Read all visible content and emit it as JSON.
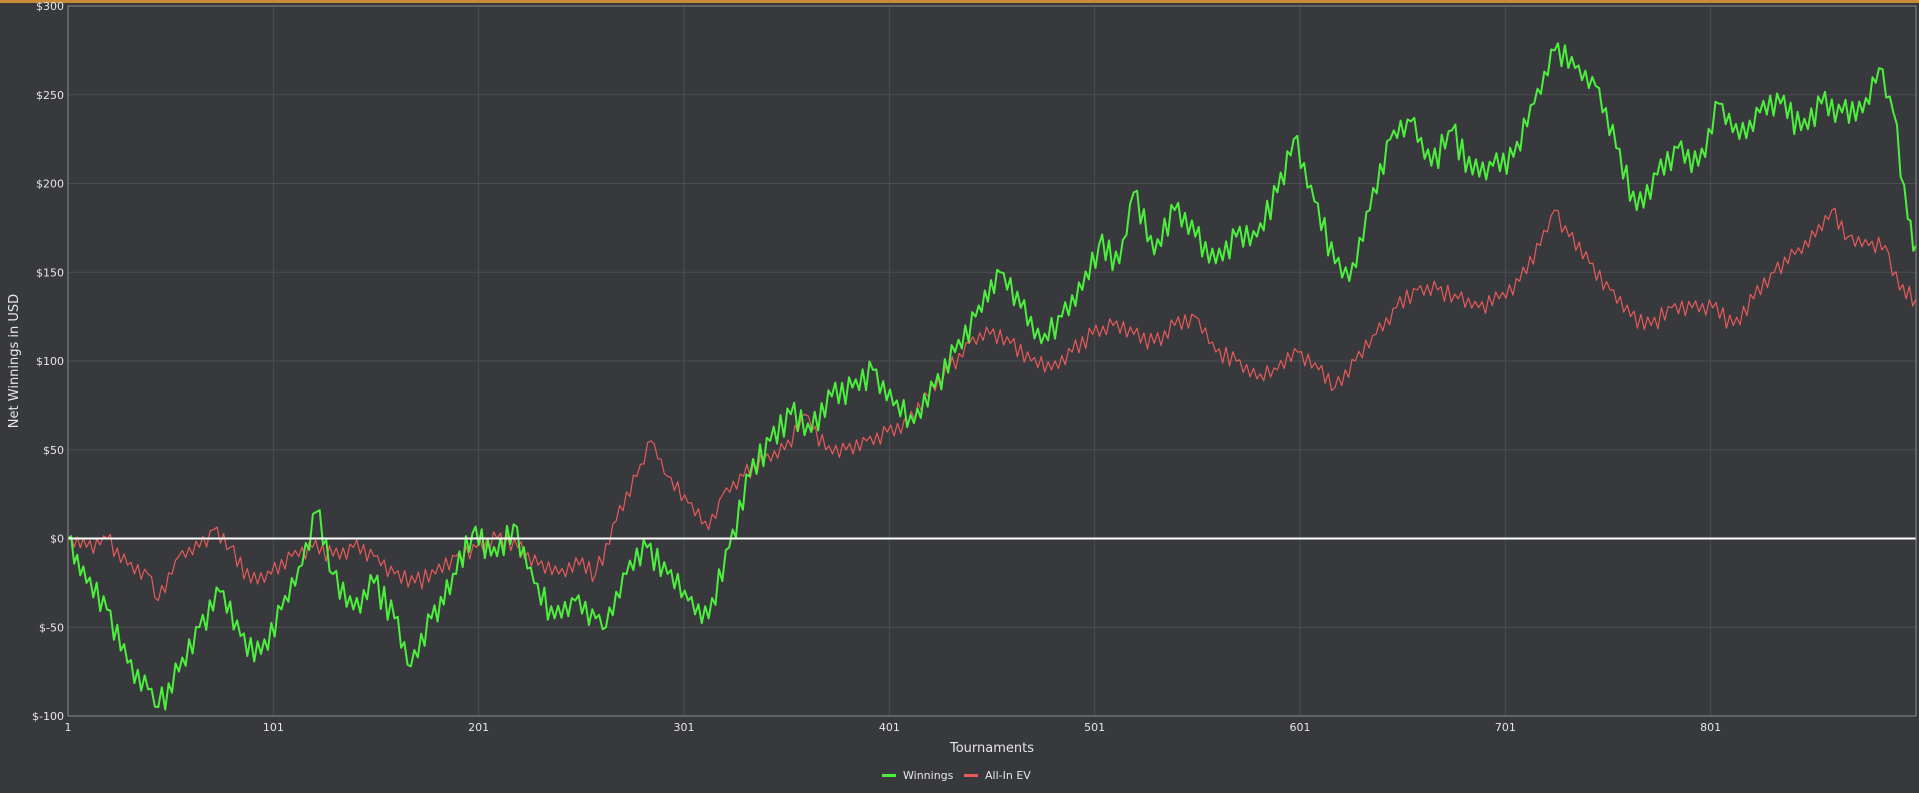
{
  "chart_data": {
    "type": "line",
    "title": "",
    "xlabel": "Tournaments",
    "ylabel": "Net Winnings in USD",
    "xlim": [
      1,
      901
    ],
    "ylim": [
      -100,
      300
    ],
    "x_ticks": [
      1,
      101,
      201,
      301,
      401,
      501,
      601,
      701,
      801
    ],
    "y_ticks": [
      -100,
      -50,
      0,
      50,
      100,
      150,
      200,
      250,
      300
    ],
    "y_tick_labels": [
      "$-100",
      "$-50",
      "$0",
      "$50",
      "$100",
      "$150",
      "$200",
      "$250",
      "$300"
    ],
    "grid": true,
    "legend_position": "bottom-center",
    "zero_line_color": "#ffffff",
    "series": [
      {
        "name": "Winnings",
        "color": "#4cf03c",
        "points": [
          [
            1,
            0
          ],
          [
            10,
            -25
          ],
          [
            20,
            -40
          ],
          [
            30,
            -70
          ],
          [
            40,
            -85
          ],
          [
            45,
            -95
          ],
          [
            55,
            -75
          ],
          [
            65,
            -50
          ],
          [
            75,
            -30
          ],
          [
            85,
            -55
          ],
          [
            95,
            -65
          ],
          [
            105,
            -40
          ],
          [
            115,
            -15
          ],
          [
            122,
            15
          ],
          [
            130,
            -20
          ],
          [
            140,
            -40
          ],
          [
            150,
            -25
          ],
          [
            160,
            -45
          ],
          [
            168,
            -72
          ],
          [
            178,
            -45
          ],
          [
            190,
            -20
          ],
          [
            198,
            3
          ],
          [
            210,
            -10
          ],
          [
            218,
            8
          ],
          [
            228,
            -25
          ],
          [
            238,
            -45
          ],
          [
            248,
            -35
          ],
          [
            258,
            -45
          ],
          [
            263,
            -50
          ],
          [
            273,
            -20
          ],
          [
            283,
            -5
          ],
          [
            293,
            -20
          ],
          [
            303,
            -35
          ],
          [
            313,
            -45
          ],
          [
            323,
            -5
          ],
          [
            333,
            35
          ],
          [
            343,
            55
          ],
          [
            353,
            70
          ],
          [
            363,
            60
          ],
          [
            373,
            80
          ],
          [
            383,
            85
          ],
          [
            393,
            95
          ],
          [
            403,
            75
          ],
          [
            413,
            65
          ],
          [
            423,
            85
          ],
          [
            433,
            105
          ],
          [
            443,
            125
          ],
          [
            455,
            150
          ],
          [
            465,
            130
          ],
          [
            475,
            110
          ],
          [
            485,
            125
          ],
          [
            495,
            140
          ],
          [
            503,
            165
          ],
          [
            513,
            155
          ],
          [
            520,
            195
          ],
          [
            530,
            160
          ],
          [
            540,
            185
          ],
          [
            550,
            170
          ],
          [
            560,
            155
          ],
          [
            570,
            170
          ],
          [
            580,
            170
          ],
          [
            590,
            195
          ],
          [
            598,
            225
          ],
          [
            608,
            190
          ],
          [
            618,
            155
          ],
          [
            625,
            145
          ],
          [
            635,
            185
          ],
          [
            645,
            225
          ],
          [
            655,
            235
          ],
          [
            665,
            210
          ],
          [
            675,
            230
          ],
          [
            685,
            205
          ],
          [
            695,
            210
          ],
          [
            705,
            215
          ],
          [
            715,
            245
          ],
          [
            725,
            275
          ],
          [
            735,
            265
          ],
          [
            745,
            255
          ],
          [
            755,
            220
          ],
          [
            765,
            185
          ],
          [
            775,
            205
          ],
          [
            785,
            220
          ],
          [
            795,
            210
          ],
          [
            805,
            245
          ],
          [
            815,
            225
          ],
          [
            825,
            240
          ],
          [
            835,
            245
          ],
          [
            845,
            230
          ],
          [
            855,
            245
          ],
          [
            865,
            240
          ],
          [
            875,
            240
          ],
          [
            883,
            265
          ],
          [
            890,
            240
          ],
          [
            897,
            180
          ],
          [
            901,
            165
          ]
        ]
      },
      {
        "name": "All-In EV",
        "color": "#e85a5a",
        "points": [
          [
            1,
            0
          ],
          [
            10,
            -5
          ],
          [
            20,
            0
          ],
          [
            30,
            -15
          ],
          [
            40,
            -20
          ],
          [
            45,
            -35
          ],
          [
            55,
            -10
          ],
          [
            65,
            -5
          ],
          [
            72,
            5
          ],
          [
            80,
            -5
          ],
          [
            90,
            -25
          ],
          [
            100,
            -20
          ],
          [
            110,
            -10
          ],
          [
            120,
            -5
          ],
          [
            130,
            -10
          ],
          [
            140,
            -5
          ],
          [
            150,
            -10
          ],
          [
            160,
            -20
          ],
          [
            170,
            -25
          ],
          [
            180,
            -20
          ],
          [
            190,
            -10
          ],
          [
            200,
            -5
          ],
          [
            210,
            0
          ],
          [
            220,
            -5
          ],
          [
            230,
            -15
          ],
          [
            240,
            -20
          ],
          [
            250,
            -15
          ],
          [
            258,
            -20
          ],
          [
            268,
            10
          ],
          [
            278,
            35
          ],
          [
            285,
            55
          ],
          [
            293,
            35
          ],
          [
            303,
            20
          ],
          [
            313,
            5
          ],
          [
            320,
            25
          ],
          [
            330,
            35
          ],
          [
            340,
            45
          ],
          [
            350,
            50
          ],
          [
            360,
            70
          ],
          [
            370,
            50
          ],
          [
            380,
            50
          ],
          [
            390,
            55
          ],
          [
            400,
            60
          ],
          [
            410,
            65
          ],
          [
            420,
            80
          ],
          [
            430,
            95
          ],
          [
            440,
            110
          ],
          [
            450,
            115
          ],
          [
            460,
            110
          ],
          [
            470,
            100
          ],
          [
            480,
            95
          ],
          [
            490,
            105
          ],
          [
            500,
            115
          ],
          [
            510,
            120
          ],
          [
            520,
            115
          ],
          [
            530,
            110
          ],
          [
            540,
            120
          ],
          [
            550,
            125
          ],
          [
            560,
            105
          ],
          [
            570,
            100
          ],
          [
            580,
            90
          ],
          [
            590,
            95
          ],
          [
            600,
            105
          ],
          [
            610,
            95
          ],
          [
            618,
            85
          ],
          [
            628,
            100
          ],
          [
            638,
            115
          ],
          [
            648,
            130
          ],
          [
            658,
            140
          ],
          [
            668,
            140
          ],
          [
            678,
            135
          ],
          [
            688,
            130
          ],
          [
            698,
            135
          ],
          [
            708,
            145
          ],
          [
            718,
            165
          ],
          [
            725,
            185
          ],
          [
            732,
            170
          ],
          [
            742,
            155
          ],
          [
            752,
            140
          ],
          [
            762,
            125
          ],
          [
            772,
            120
          ],
          [
            782,
            130
          ],
          [
            792,
            130
          ],
          [
            802,
            130
          ],
          [
            812,
            120
          ],
          [
            822,
            135
          ],
          [
            832,
            150
          ],
          [
            842,
            160
          ],
          [
            852,
            170
          ],
          [
            860,
            185
          ],
          [
            868,
            170
          ],
          [
            878,
            165
          ],
          [
            886,
            165
          ],
          [
            893,
            140
          ],
          [
            901,
            135
          ]
        ]
      }
    ]
  }
}
